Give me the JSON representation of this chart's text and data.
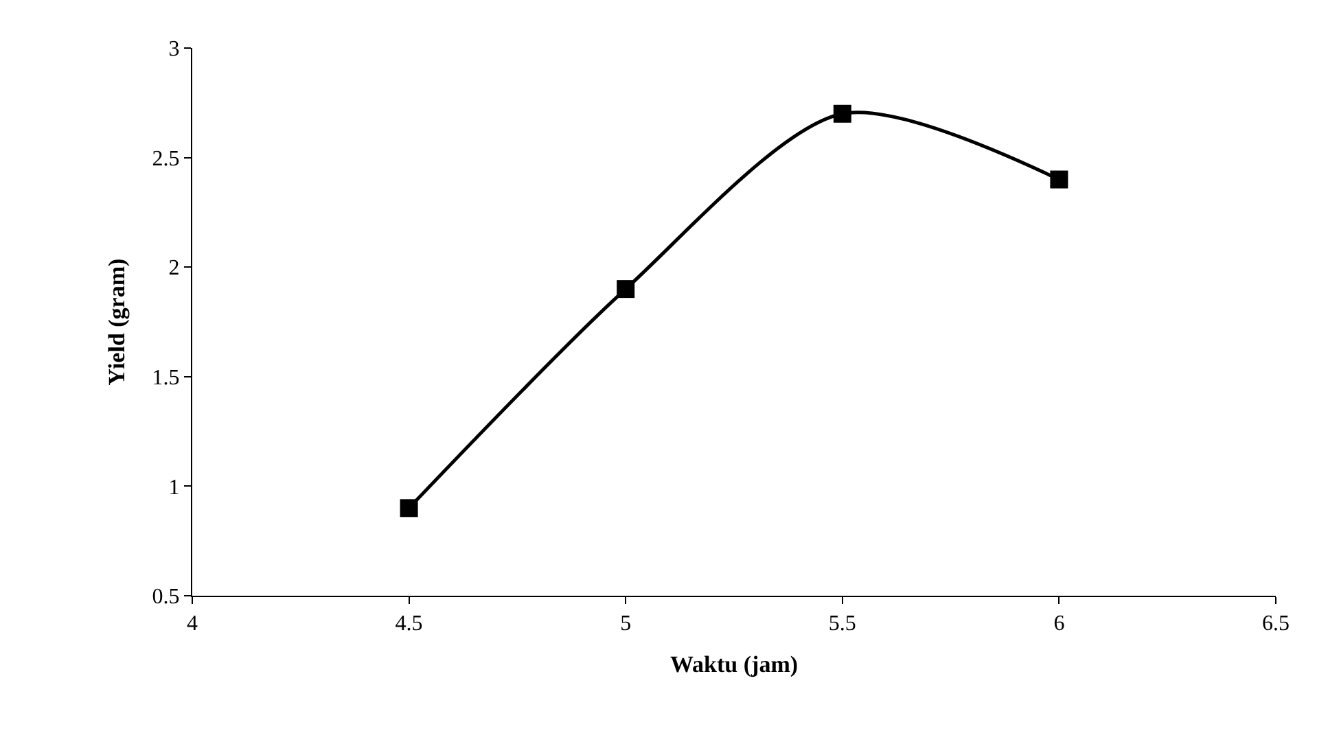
{
  "chart_data": {
    "type": "line",
    "xlabel": "Waktu (jam)",
    "ylabel": "Yield (gram)",
    "x": [
      4.5,
      5,
      5.5,
      6
    ],
    "series": [
      {
        "color": "#000000",
        "values": [
          0.9,
          1.9,
          2.7,
          2.4
        ]
      }
    ],
    "xlim": [
      4,
      6.5
    ],
    "xticks": [
      4,
      4.5,
      5,
      5.5,
      6,
      6.5
    ],
    "ylim": [
      0.5,
      3
    ],
    "yticks": [
      0.5,
      1,
      1.5,
      2,
      2.5,
      3
    ],
    "marker": "square",
    "line_style": "solid"
  }
}
